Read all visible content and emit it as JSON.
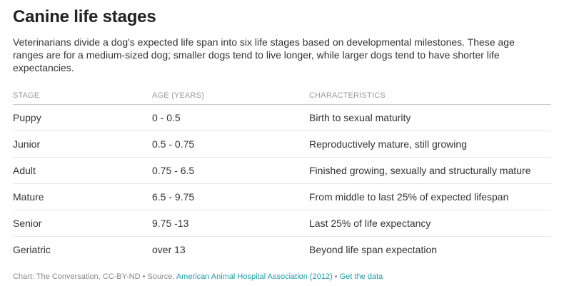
{
  "title": "Canine life stages",
  "description": "Veterinarians divide a dog's expected life span into six life stages based on developmental milestones. These age ranges are for a medium-sized dog; smaller dogs tend to live longer, while larger dogs tend to have shorter life expectancies.",
  "chart_data": {
    "type": "table",
    "columns": [
      "STAGE",
      "AGE (YEARS)",
      "CHARACTERISTICS"
    ],
    "rows": [
      [
        "Puppy",
        "0 - 0.5",
        "Birth to sexual maturity"
      ],
      [
        "Junior",
        "0.5 - 0.75",
        "Reproductively mature, still growing"
      ],
      [
        "Adult",
        "0.75 - 6.5",
        "Finished growing, sexually and structurally mature"
      ],
      [
        "Mature",
        "6.5 - 9.75",
        "From middle to last 25% of expected lifespan"
      ],
      [
        "Senior",
        "9.75 -13",
        "Last 25% of life expectancy"
      ],
      [
        "Geriatric",
        "over 13",
        "Beyond life span expectation"
      ]
    ]
  },
  "footer": {
    "credit": "Chart: The Conversation, CC-BY-ND",
    "separator1": " • ",
    "source_prefix": "Source: ",
    "source_link": "American Animal Hospital Association (2012)",
    "separator2": " • ",
    "data_link": "Get the data"
  },
  "colors": {
    "link": "#1f9ba8",
    "header_text": "#999999",
    "body_text": "#333333"
  }
}
